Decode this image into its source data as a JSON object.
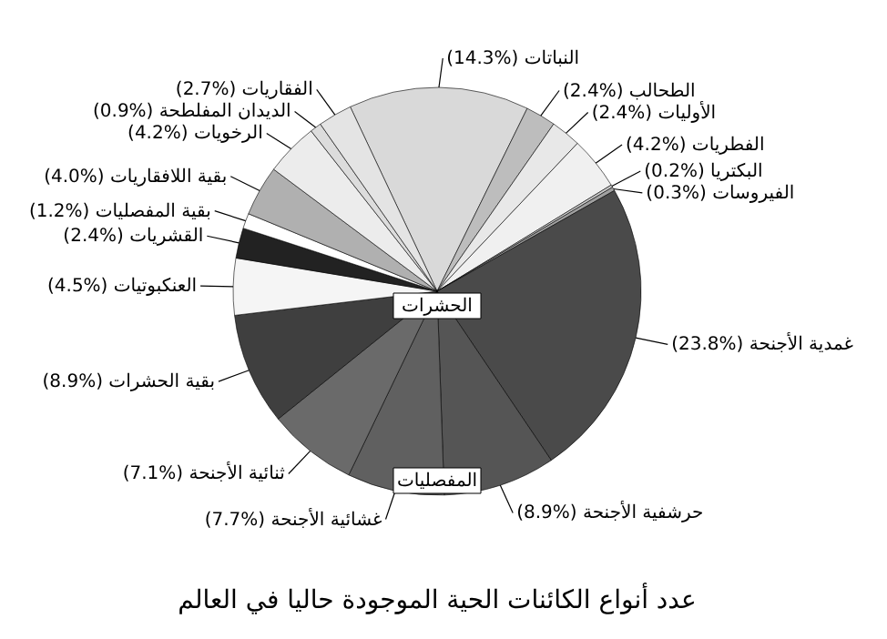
{
  "chart_data": {
    "type": "pie",
    "title": "عدد أنواع الكائنات الحية الموجودة حاليا في العالم",
    "categories": [
      "النباتات",
      "الطحالب",
      "الأوليات",
      "الفطريات",
      "البكتريا",
      "الفيروسات",
      "غمدية الأجنحة",
      "حرشفية الأجنحة",
      "غشائية الأجنحة",
      "ثنائية الأجنحة",
      "بقية الحشرات",
      "العنكبوتيات",
      "القشريات",
      "بقية المفصليات",
      "بقية اللافقاريات",
      "الرخويات",
      "الديدان المفلطحة",
      "الفقاريات"
    ],
    "values": [
      14.3,
      2.4,
      2.4,
      4.2,
      0.2,
      0.3,
      23.8,
      8.9,
      7.7,
      7.1,
      8.9,
      4.5,
      2.4,
      1.2,
      4.0,
      4.2,
      0.9,
      2.7
    ],
    "colors": [
      "#d9d9d9",
      "#bdbdbd",
      "#e8e8e8",
      "#f0f0f0",
      "#cccccc",
      "#a0a0a0",
      "#4a4a4a",
      "#555555",
      "#606060",
      "#6a6a6a",
      "#3f3f3f",
      "#f5f5f5",
      "#222222",
      "#ffffff",
      "#b0b0b0",
      "#ececec",
      "#dcdcdc",
      "#e4e4e4"
    ],
    "value_labels": [
      "(14.3%)",
      "(2.4%)",
      "(2.4%)",
      "(4.2%)",
      "(0.2%)",
      "(0.3%)",
      "(23.8%)",
      "(8.9%)",
      "(7.7%)",
      "(7.1%)",
      "(8.9%)",
      "(4.5%)",
      "(2.4%)",
      "(1.2%)",
      "(4.0%)",
      "(4.2%)",
      "(0.9%)",
      "(2.7%)"
    ],
    "annotations": [
      "الحشرات",
      "المفصليات"
    ]
  }
}
